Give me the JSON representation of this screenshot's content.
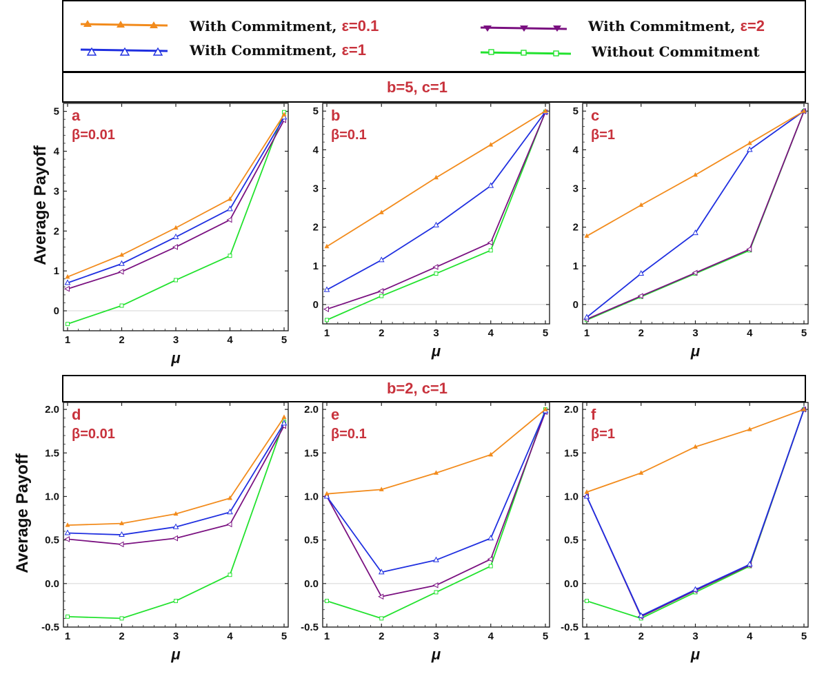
{
  "legend": {
    "entries": [
      {
        "text": "With Commitment, ",
        "eps": "ε=0.1",
        "color": "#f28b1c",
        "marker": "triangle-up-filled"
      },
      {
        "text": "With Commitment, ",
        "eps": "ε=1",
        "color": "#1f2fe0",
        "marker": "triangle-up-open"
      },
      {
        "text": "With Commitment, ",
        "eps": "ε=2",
        "color": "#7a1080",
        "marker": "triangle-down-filled"
      },
      {
        "text": "Without Commitment",
        "eps": "",
        "color": "#22e22e",
        "marker": "square-open"
      }
    ]
  },
  "bands": {
    "top": "b=5, c=1",
    "bottom": "b=2, c=1"
  },
  "axis_text": {
    "xlabel": "μ",
    "ylabel": "Average Payoff"
  },
  "colors": {
    "eps01": "#f28b1c",
    "eps1": "#1f2fe0",
    "eps2": "#7a1080",
    "none": "#22e22e",
    "label_red": "#c8323c"
  },
  "chart_data": [
    {
      "type": "line",
      "panel": "a",
      "beta_label": "β=0.01",
      "xlabel": "μ",
      "ylabel": "Average Payoff",
      "x": [
        1,
        2,
        3,
        4,
        5
      ],
      "ylim": [
        -0.5,
        5.2
      ],
      "yticks": [
        0,
        1,
        2,
        3,
        4,
        5
      ],
      "ytick_labels": [
        "0",
        "1",
        "2",
        "3",
        "4",
        "5"
      ],
      "series": [
        {
          "name": "With Commitment, ε=0.1",
          "values": [
            0.85,
            1.4,
            2.08,
            2.8,
            4.92
          ]
        },
        {
          "name": "With Commitment, ε=1",
          "values": [
            0.7,
            1.18,
            1.85,
            2.55,
            4.85
          ]
        },
        {
          "name": "With Commitment, ε=2",
          "values": [
            0.55,
            0.98,
            1.6,
            2.28,
            4.78
          ]
        },
        {
          "name": "Without Commitment",
          "values": [
            -0.33,
            0.13,
            0.77,
            1.38,
            4.98
          ]
        }
      ]
    },
    {
      "type": "line",
      "panel": "b",
      "beta_label": "β=0.1",
      "xlabel": "μ",
      "ylabel": "",
      "x": [
        1,
        2,
        3,
        4,
        5
      ],
      "ylim": [
        -0.5,
        5.2
      ],
      "yticks": [
        0,
        1,
        2,
        3,
        4,
        5
      ],
      "ytick_labels": [
        "0",
        "1",
        "2",
        "3",
        "4",
        "5"
      ],
      "series": [
        {
          "name": "With Commitment, ε=0.1",
          "values": [
            1.5,
            2.38,
            3.28,
            4.13,
            5.0
          ]
        },
        {
          "name": "With Commitment, ε=1",
          "values": [
            0.38,
            1.15,
            2.05,
            3.07,
            4.98
          ]
        },
        {
          "name": "With Commitment, ε=2",
          "values": [
            -0.12,
            0.35,
            0.97,
            1.6,
            4.97
          ]
        },
        {
          "name": "Without Commitment",
          "values": [
            -0.4,
            0.22,
            0.8,
            1.4,
            4.98
          ]
        }
      ]
    },
    {
      "type": "line",
      "panel": "c",
      "beta_label": "β=1",
      "xlabel": "μ",
      "ylabel": "",
      "x": [
        1,
        2,
        3,
        4,
        5
      ],
      "ylim": [
        -0.5,
        5.2
      ],
      "yticks": [
        0,
        1,
        2,
        3,
        4,
        5
      ],
      "ytick_labels": [
        "0",
        "1",
        "2",
        "3",
        "4",
        "5"
      ],
      "series": [
        {
          "name": "With Commitment, ε=0.1",
          "values": [
            1.77,
            2.57,
            3.35,
            4.17,
            5.0
          ]
        },
        {
          "name": "With Commitment, ε=1",
          "values": [
            -0.33,
            0.8,
            1.85,
            4.0,
            5.0
          ]
        },
        {
          "name": "With Commitment, ε=2",
          "values": [
            -0.38,
            0.22,
            0.82,
            1.43,
            5.0
          ]
        },
        {
          "name": "Without Commitment",
          "values": [
            -0.4,
            0.2,
            0.8,
            1.4,
            5.0
          ]
        }
      ]
    },
    {
      "type": "line",
      "panel": "d",
      "beta_label": "β=0.01",
      "xlabel": "μ",
      "ylabel": "Average Payoff",
      "x": [
        1,
        2,
        3,
        4,
        5
      ],
      "ylim": [
        -0.5,
        2.08
      ],
      "yticks": [
        -0.5,
        0,
        0.5,
        1,
        1.5,
        2
      ],
      "ytick_labels": [
        "-0.5",
        "0.0",
        "0.5",
        "1.0",
        "1.5",
        "2.0"
      ],
      "series": [
        {
          "name": "With Commitment, ε=0.1",
          "values": [
            0.67,
            0.69,
            0.8,
            0.98,
            1.91
          ]
        },
        {
          "name": "With Commitment, ε=1",
          "values": [
            0.58,
            0.56,
            0.65,
            0.82,
            1.84
          ]
        },
        {
          "name": "With Commitment, ε=2",
          "values": [
            0.51,
            0.45,
            0.52,
            0.68,
            1.81
          ]
        },
        {
          "name": "Without Commitment",
          "values": [
            -0.38,
            -0.4,
            -0.2,
            0.1,
            1.86
          ]
        }
      ]
    },
    {
      "type": "line",
      "panel": "e",
      "beta_label": "β=0.1",
      "xlabel": "μ",
      "ylabel": "",
      "x": [
        1,
        2,
        3,
        4,
        5
      ],
      "ylim": [
        -0.5,
        2.08
      ],
      "yticks": [
        -0.5,
        0,
        0.5,
        1,
        1.5,
        2
      ],
      "ytick_labels": [
        "-0.5",
        "0.0",
        "0.5",
        "1.0",
        "1.5",
        "2.0"
      ],
      "series": [
        {
          "name": "With Commitment, ε=0.1",
          "values": [
            1.03,
            1.08,
            1.27,
            1.48,
            2.0
          ]
        },
        {
          "name": "With Commitment, ε=1",
          "values": [
            1.0,
            0.13,
            0.27,
            0.52,
            1.98
          ]
        },
        {
          "name": "With Commitment, ε=2",
          "values": [
            1.0,
            -0.15,
            -0.02,
            0.28,
            1.97
          ]
        },
        {
          "name": "Without Commitment",
          "values": [
            -0.2,
            -0.4,
            -0.1,
            0.2,
            2.0
          ]
        }
      ]
    },
    {
      "type": "line",
      "panel": "f",
      "beta_label": "β=1",
      "xlabel": "μ",
      "ylabel": "",
      "x": [
        1,
        2,
        3,
        4,
        5
      ],
      "ylim": [
        -0.5,
        2.08
      ],
      "yticks": [
        -0.5,
        0,
        0.5,
        1,
        1.5,
        2
      ],
      "ytick_labels": [
        "-0.5",
        "0.0",
        "0.5",
        "1.0",
        "1.5",
        "2.0"
      ],
      "series": [
        {
          "name": "With Commitment, ε=0.1",
          "values": [
            1.05,
            1.27,
            1.57,
            1.77,
            2.0
          ]
        },
        {
          "name": "With Commitment, ε=1",
          "values": [
            1.0,
            -0.37,
            -0.07,
            0.22,
            2.0
          ]
        },
        {
          "name": "With Commitment, ε=2",
          "values": [
            1.0,
            -0.38,
            -0.08,
            0.21,
            2.0
          ]
        },
        {
          "name": "Without Commitment",
          "values": [
            -0.2,
            -0.4,
            -0.1,
            0.2,
            2.0
          ]
        }
      ]
    }
  ]
}
